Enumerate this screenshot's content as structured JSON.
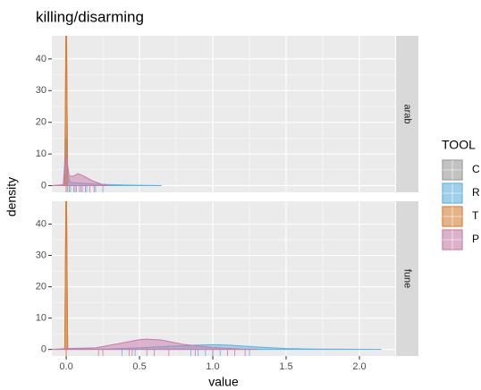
{
  "chart_data": {
    "type": "density",
    "title": "killing/disarming",
    "x_label": "value",
    "y_label": "density",
    "legend_title": "TOOL",
    "xlim": [
      -0.098,
      2.244
    ],
    "xticks": [
      {
        "value": 0,
        "label": "0.0"
      },
      0.5,
      {
        "value": 1,
        "label": "1.0"
      },
      1.5,
      {
        "value": 2,
        "label": "2.0"
      }
    ],
    "ylim": [
      -2.1,
      47.3
    ],
    "yticks": [
      0,
      10,
      20,
      30,
      40
    ],
    "grid": true,
    "facets": [
      {
        "label": "arab",
        "series": [
          {
            "name": "C",
            "color": "#999999",
            "x": [
              -0.01,
              0,
              0.01
            ],
            "values": [
              0,
              60,
              0
            ],
            "rug": [
              0
            ]
          },
          {
            "name": "R",
            "color": "#56B4E9",
            "x": [
              -0.1,
              -0.02,
              0,
              0.01,
              0.03,
              0.1,
              0.2,
              0.4,
              0.65
            ],
            "values": [
              0,
              0.2,
              15,
              3,
              1,
              0.8,
              0.5,
              0.2,
              0
            ],
            "rug": [
              0.01,
              0.03,
              0.06,
              0.1,
              0.14,
              0.2,
              0.25
            ]
          },
          {
            "name": "T",
            "color": "#E07B28",
            "x": [
              -0.01,
              0,
              0.01
            ],
            "values": [
              0,
              60,
              0
            ],
            "rug": [
              0
            ]
          },
          {
            "name": "P",
            "color": "#CC79A7",
            "x": [
              -0.1,
              -0.02,
              0,
              0.02,
              0.05,
              0.08,
              0.12,
              0.18,
              0.25,
              0.3
            ],
            "values": [
              0,
              0.3,
              10,
              3,
              3,
              3.8,
              3,
              1.5,
              0.3,
              0
            ],
            "rug": [
              0.02,
              0.05,
              0.07,
              0.09,
              0.11,
              0.13,
              0.16,
              0.19
            ]
          }
        ]
      },
      {
        "label": "fune",
        "series": [
          {
            "name": "C",
            "color": "#999999",
            "x": [
              -0.01,
              0,
              0.01
            ],
            "values": [
              0,
              60,
              0
            ],
            "rug": [
              0
            ]
          },
          {
            "name": "R",
            "color": "#56B4E9",
            "x": [
              -0.1,
              0,
              0.3,
              0.5,
              0.7,
              0.9,
              1.0,
              1.1,
              1.3,
              1.5,
              1.7,
              2.0,
              2.15
            ],
            "values": [
              0,
              0.1,
              0.2,
              0.5,
              1.0,
              1.4,
              1.5,
              1.4,
              0.8,
              0.3,
              0.1,
              0.05,
              0
            ],
            "rug": [
              0.38,
              0.47,
              0.85,
              0.9,
              0.95,
              1.0,
              1.05,
              1.25
            ]
          },
          {
            "name": "T",
            "color": "#E07B28",
            "x": [
              -0.01,
              0,
              0.01
            ],
            "values": [
              0,
              60,
              0
            ],
            "rug": [
              0
            ]
          },
          {
            "name": "P",
            "color": "#CC79A7",
            "x": [
              -0.1,
              0,
              0.2,
              0.35,
              0.5,
              0.55,
              0.65,
              0.8,
              1.0,
              1.2,
              1.3
            ],
            "values": [
              0,
              0.3,
              0.5,
              1.8,
              3.1,
              3.3,
              3.0,
              1.6,
              0.6,
              0.1,
              0
            ],
            "rug": [
              0.22,
              0.25,
              0.43,
              0.45,
              0.55,
              0.6,
              0.7,
              0.88,
              1.0,
              1.1,
              1.15,
              1.22
            ]
          }
        ]
      }
    ]
  }
}
